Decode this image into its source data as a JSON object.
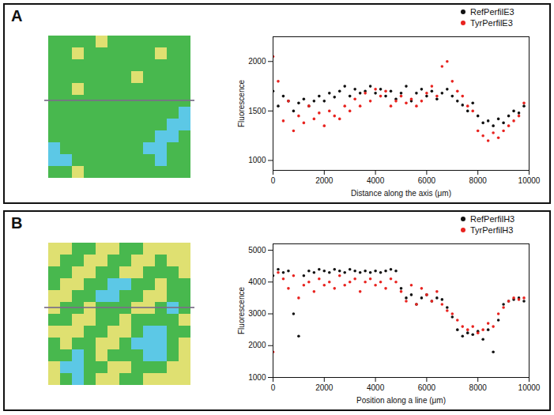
{
  "chart_data": [
    {
      "panel": "A",
      "type": "scatter",
      "xlabel": "Distance along the axis (μm)",
      "ylabel": "Fluorescence",
      "x": [
        0,
        200,
        400,
        600,
        800,
        1000,
        1200,
        1400,
        1600,
        1800,
        2000,
        2200,
        2400,
        2600,
        2800,
        3000,
        3200,
        3400,
        3600,
        3800,
        4000,
        4200,
        4400,
        4600,
        4800,
        5000,
        5200,
        5400,
        5600,
        5800,
        6000,
        6200,
        6400,
        6600,
        6800,
        7000,
        7200,
        7400,
        7600,
        7800,
        8000,
        8200,
        8400,
        8600,
        8800,
        9000,
        9200,
        9400,
        9600,
        9800
      ],
      "xlim": [
        0,
        10000
      ],
      "xticks": [
        0,
        2000,
        4000,
        6000,
        8000,
        10000
      ],
      "ylim": [
        900,
        2250
      ],
      "yticks": [
        1000,
        1500,
        2000
      ],
      "legend": "top-right",
      "series": [
        {
          "name": "RefPerfilE3",
          "color": "#111111",
          "marker": "circle",
          "values": [
            1700,
            1550,
            1650,
            1600,
            1500,
            1580,
            1620,
            1550,
            1600,
            1650,
            1600,
            1680,
            1640,
            1700,
            1750,
            1650,
            1720,
            1680,
            1700,
            1750,
            1680,
            1720,
            1650,
            1700,
            1620,
            1680,
            1750,
            1600,
            1680,
            1720,
            1650,
            1700,
            1620,
            1680,
            1720,
            1650,
            1600,
            1560,
            1500,
            1580,
            1450,
            1380,
            1400,
            1350,
            1420,
            1380,
            1450,
            1500,
            1480,
            1550
          ]
        },
        {
          "name": "TyrPerfilE3",
          "color": "#e8231f",
          "marker": "circle",
          "values": [
            2050,
            1800,
            1400,
            1600,
            1300,
            1450,
            1380,
            1550,
            1420,
            1480,
            1350,
            1500,
            1450,
            1420,
            1550,
            1500,
            1620,
            1550,
            1680,
            1600,
            1720,
            1650,
            1700,
            1550,
            1600,
            1650,
            1580,
            1620,
            1550,
            1600,
            1680,
            1750,
            1650,
            1950,
            2000,
            1800,
            1700,
            1650,
            1550,
            1500,
            1300,
            1250,
            1200,
            1280,
            1230,
            1300,
            1350,
            1400,
            1450,
            1580
          ]
        }
      ],
      "map_colors": [
        "#5cc8e6",
        "#48b84e",
        "#dfe071"
      ],
      "map_cells": [
        [
          1,
          1,
          1,
          1,
          2,
          1,
          1,
          1,
          1,
          1,
          1,
          1
        ],
        [
          1,
          1,
          2,
          1,
          1,
          1,
          1,
          1,
          1,
          2,
          1,
          1
        ],
        [
          1,
          1,
          1,
          1,
          1,
          1,
          1,
          1,
          1,
          1,
          1,
          1
        ],
        [
          1,
          1,
          1,
          1,
          1,
          1,
          1,
          2,
          1,
          1,
          1,
          1
        ],
        [
          1,
          1,
          2,
          1,
          1,
          1,
          1,
          1,
          1,
          1,
          1,
          1
        ],
        [
          1,
          1,
          1,
          1,
          1,
          1,
          1,
          1,
          1,
          1,
          1,
          1
        ],
        [
          1,
          1,
          1,
          1,
          1,
          1,
          1,
          1,
          1,
          1,
          1,
          0
        ],
        [
          1,
          1,
          1,
          1,
          1,
          1,
          1,
          1,
          1,
          1,
          0,
          0
        ],
        [
          1,
          1,
          1,
          1,
          1,
          1,
          1,
          1,
          1,
          0,
          0,
          1
        ],
        [
          0,
          1,
          1,
          1,
          1,
          1,
          1,
          1,
          0,
          0,
          1,
          1
        ],
        [
          0,
          0,
          1,
          1,
          1,
          1,
          1,
          1,
          1,
          0,
          1,
          1
        ],
        [
          1,
          1,
          2,
          1,
          1,
          1,
          1,
          1,
          1,
          1,
          1,
          1
        ]
      ]
    },
    {
      "panel": "B",
      "type": "scatter",
      "xlabel": "Position along a line (μm)",
      "ylabel": "Fluorescence",
      "x": [
        0,
        200,
        400,
        600,
        800,
        1000,
        1200,
        1400,
        1600,
        1800,
        2000,
        2200,
        2400,
        2600,
        2800,
        3000,
        3200,
        3400,
        3600,
        3800,
        4000,
        4200,
        4400,
        4600,
        4800,
        5000,
        5200,
        5400,
        5600,
        5800,
        6000,
        6200,
        6400,
        6600,
        6800,
        7000,
        7200,
        7400,
        7600,
        7800,
        8000,
        8200,
        8400,
        8600,
        8800,
        9000,
        9200,
        9400,
        9600,
        9800
      ],
      "xlim": [
        0,
        10000
      ],
      "xticks": [
        0,
        2000,
        4000,
        6000,
        8000,
        10000
      ],
      "ylim": [
        1000,
        5200
      ],
      "yticks": [
        1000,
        2000,
        3000,
        4000,
        5000
      ],
      "legend": "top-right",
      "series": [
        {
          "name": "RefPerfilH3",
          "color": "#111111",
          "marker": "circle",
          "values": [
            4200,
            4400,
            4300,
            4350,
            3000,
            2300,
            4200,
            4350,
            4300,
            4400,
            4350,
            4300,
            4400,
            4350,
            4300,
            4400,
            4350,
            4300,
            4350,
            4300,
            4350,
            4300,
            4350,
            4400,
            4350,
            3800,
            3500,
            3600,
            3300,
            3500,
            3600,
            3400,
            3500,
            3450,
            3200,
            2900,
            2500,
            2300,
            2400,
            2350,
            2450,
            2200,
            2500,
            1800,
            2800,
            3300,
            3400,
            3450,
            3500,
            3400
          ]
        },
        {
          "name": "TyrPerfilH3",
          "color": "#e8231f",
          "marker": "circle",
          "values": [
            1800,
            4300,
            4100,
            3800,
            4200,
            3500,
            3900,
            4000,
            3700,
            4100,
            3900,
            4000,
            3800,
            4200,
            3900,
            4000,
            4100,
            3700,
            4000,
            4100,
            3900,
            4000,
            3800,
            4100,
            4000,
            3700,
            3400,
            3900,
            3300,
            3800,
            3600,
            3400,
            3700,
            3300,
            3100,
            3000,
            2800,
            2600,
            2500,
            2600,
            2400,
            2500,
            2700,
            2600,
            3000,
            3200,
            3400,
            3500,
            3450,
            3500
          ]
        }
      ],
      "map_colors": [
        "#5cc8e6",
        "#48b84e",
        "#dfe071"
      ],
      "map_cells": [
        [
          2,
          2,
          1,
          1,
          2,
          2,
          1,
          1,
          2,
          2,
          2,
          2
        ],
        [
          2,
          1,
          1,
          2,
          2,
          1,
          1,
          2,
          2,
          1,
          2,
          2
        ],
        [
          1,
          1,
          2,
          2,
          1,
          1,
          2,
          2,
          1,
          1,
          1,
          2
        ],
        [
          1,
          2,
          2,
          1,
          1,
          0,
          0,
          1,
          1,
          2,
          1,
          1
        ],
        [
          2,
          2,
          1,
          1,
          0,
          0,
          1,
          1,
          2,
          2,
          1,
          1
        ],
        [
          2,
          1,
          1,
          2,
          1,
          1,
          1,
          2,
          2,
          1,
          0,
          1
        ],
        [
          1,
          1,
          2,
          2,
          1,
          1,
          2,
          1,
          1,
          1,
          1,
          2
        ],
        [
          2,
          2,
          2,
          1,
          1,
          2,
          2,
          1,
          0,
          0,
          1,
          1
        ],
        [
          1,
          2,
          1,
          1,
          2,
          2,
          1,
          0,
          0,
          0,
          1,
          2
        ],
        [
          1,
          1,
          0,
          1,
          2,
          1,
          1,
          1,
          0,
          0,
          1,
          2
        ],
        [
          2,
          0,
          0,
          1,
          1,
          2,
          2,
          1,
          1,
          1,
          2,
          2
        ],
        [
          2,
          1,
          0,
          1,
          2,
          2,
          1,
          1,
          2,
          2,
          2,
          2
        ]
      ]
    }
  ]
}
